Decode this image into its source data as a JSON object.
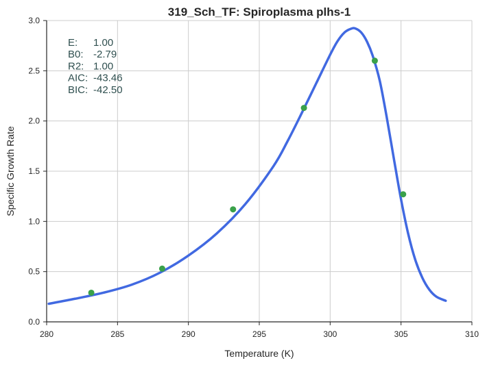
{
  "chart_data": {
    "type": "line",
    "title": "319_Sch_TF: Spiroplasma plhs-1",
    "xlabel": "Temperature (K)",
    "ylabel": "Specific Growth Rate",
    "xlim": [
      280,
      310
    ],
    "ylim": [
      0.0,
      3.0
    ],
    "grid": true,
    "x_ticks": [
      280,
      285,
      290,
      295,
      300,
      305,
      310
    ],
    "y_ticks": [
      0.0,
      0.5,
      1.0,
      1.5,
      2.0,
      2.5,
      3.0
    ],
    "x_tick_labels": [
      "280",
      "285",
      "290",
      "295",
      "300",
      "305",
      "310"
    ],
    "y_tick_labels": [
      "0.0",
      "0.5",
      "1.0",
      "1.5",
      "2.0",
      "2.5",
      "3.0"
    ],
    "annotations": [
      {
        "label": "E:",
        "value": "1.00"
      },
      {
        "label": "B0:",
        "value": "-2.79"
      },
      {
        "label": "R2:",
        "value": "1.00"
      },
      {
        "label": "AIC:",
        "value": "-43.46"
      },
      {
        "label": "BIC:",
        "value": "-42.50"
      }
    ],
    "series": [
      {
        "kind": "scatter",
        "color": "#3aa14a",
        "x": [
          283.15,
          288.15,
          293.15,
          298.15,
          303.15,
          305.15
        ],
        "y": [
          0.29,
          0.53,
          1.12,
          2.13,
          2.6,
          1.27
        ]
      },
      {
        "kind": "fit-line",
        "color": "#4169e1",
        "x": [
          280.15,
          282,
          284,
          286,
          288,
          290,
          292,
          294,
          296,
          297,
          298,
          299,
          300,
          300.5,
          301,
          301.5,
          301.8,
          302.2,
          302.6,
          303,
          303.5,
          304,
          304.5,
          305,
          305.5,
          306,
          306.5,
          307,
          307.5,
          308.15
        ],
        "y": [
          0.18,
          0.23,
          0.29,
          0.37,
          0.49,
          0.66,
          0.88,
          1.17,
          1.55,
          1.8,
          2.08,
          2.37,
          2.66,
          2.79,
          2.88,
          2.92,
          2.92,
          2.88,
          2.79,
          2.65,
          2.4,
          2.03,
          1.62,
          1.22,
          0.88,
          0.62,
          0.44,
          0.32,
          0.25,
          0.21
        ]
      }
    ]
  }
}
